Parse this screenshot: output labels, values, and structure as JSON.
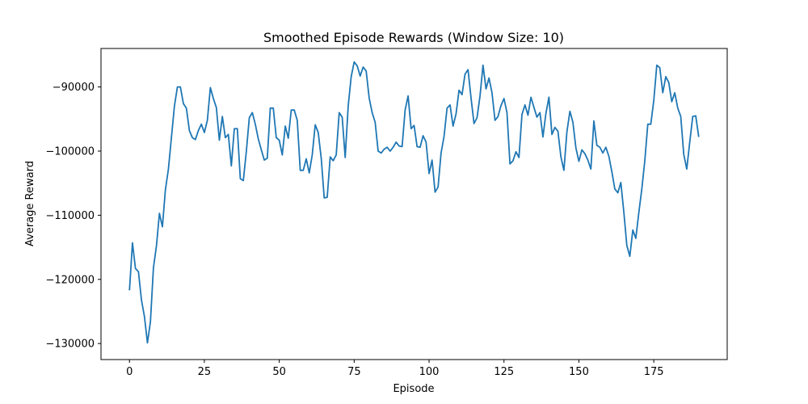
{
  "chart_data": {
    "type": "line",
    "title": "Smoothed Episode Rewards (Window Size: 10)",
    "xlabel": "Episode",
    "ylabel": "Average Reward",
    "xlim": [
      -9.5,
      199.5
    ],
    "ylim": [
      -132500,
      -84000
    ],
    "x_ticks": [
      0,
      25,
      50,
      75,
      100,
      125,
      150,
      175
    ],
    "y_ticks": [
      -130000,
      -120000,
      -110000,
      -100000,
      -90000
    ],
    "y_tick_labels": [
      "−130000",
      "−120000",
      "−110000",
      "−100000",
      "−90000"
    ],
    "grid": false,
    "legend": "none",
    "series": [
      {
        "color": "#1f77b4",
        "x_start": 0,
        "x_step": 1,
        "values": [
          -121700,
          -114300,
          -118300,
          -118800,
          -123200,
          -125800,
          -129900,
          -126600,
          -118200,
          -114800,
          -109700,
          -111800,
          -106000,
          -102800,
          -97900,
          -93000,
          -90000,
          -90000,
          -92600,
          -93300,
          -96800,
          -97900,
          -98200,
          -96800,
          -95800,
          -97100,
          -95200,
          -90100,
          -91800,
          -93200,
          -98300,
          -94600,
          -97900,
          -97400,
          -102300,
          -96500,
          -96500,
          -104300,
          -104600,
          -100100,
          -94800,
          -94000,
          -95800,
          -98100,
          -99800,
          -101400,
          -101100,
          -93300,
          -93300,
          -97900,
          -98300,
          -100600,
          -96100,
          -98000,
          -93600,
          -93600,
          -95200,
          -103000,
          -103000,
          -101200,
          -103400,
          -100600,
          -95900,
          -97100,
          -101100,
          -107300,
          -107200,
          -100900,
          -101500,
          -100600,
          -94000,
          -94700,
          -101000,
          -93000,
          -88400,
          -86100,
          -86700,
          -88300,
          -86900,
          -87500,
          -91700,
          -94000,
          -95500,
          -100000,
          -100300,
          -99700,
          -99400,
          -100000,
          -99400,
          -98600,
          -99200,
          -99300,
          -93600,
          -91400,
          -96500,
          -96000,
          -99300,
          -99400,
          -97600,
          -98600,
          -103500,
          -101400,
          -106400,
          -105600,
          -100300,
          -97700,
          -93300,
          -92800,
          -96100,
          -94200,
          -90500,
          -91200,
          -88000,
          -87300,
          -91700,
          -95700,
          -94800,
          -91400,
          -86600,
          -90300,
          -88600,
          -90900,
          -95200,
          -94600,
          -92900,
          -91800,
          -94000,
          -102000,
          -101500,
          -100100,
          -101000,
          -94300,
          -92800,
          -94400,
          -91600,
          -93200,
          -94700,
          -94000,
          -97800,
          -94100,
          -91600,
          -97400,
          -96300,
          -96900,
          -100900,
          -103000,
          -97000,
          -93800,
          -95500,
          -99500,
          -101600,
          -99800,
          -100400,
          -101400,
          -102800,
          -95300,
          -99100,
          -99400,
          -100300,
          -99400,
          -100800,
          -103200,
          -105900,
          -106500,
          -104900,
          -109500,
          -114700,
          -116400,
          -112300,
          -113600,
          -109600,
          -105900,
          -101500,
          -95800,
          -95800,
          -92100,
          -86600,
          -87000,
          -90900,
          -88400,
          -89300,
          -92300,
          -90900,
          -93300,
          -94600,
          -100500,
          -102800,
          -98600,
          -94600,
          -94500,
          -97800
        ]
      }
    ]
  }
}
